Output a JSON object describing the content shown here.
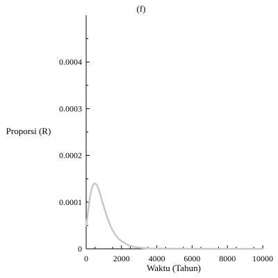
{
  "chart_data": {
    "type": "line",
    "title": "(f)",
    "xlabel": "Waktu (Tahun)",
    "ylabel": "Proporsi (R)",
    "xlim": [
      0,
      10000
    ],
    "ylim": [
      0,
      0.0005
    ],
    "xticks": [
      0,
      2000,
      4000,
      6000,
      8000,
      10000
    ],
    "xtick_labels": [
      "0",
      "2000",
      "4000",
      "6000",
      "8000",
      "10000"
    ],
    "yticks": [
      0,
      0.0001,
      0.0002,
      0.0003,
      0.0004
    ],
    "ytick_labels": [
      "0",
      "0.0001",
      "0.0002",
      "0.0003",
      "0.0004"
    ],
    "grid": false,
    "series": [
      {
        "color": "#c8c8c8",
        "x": [
          0,
          100,
          200,
          300,
          400,
          500,
          600,
          700,
          800,
          1000,
          1200,
          1400,
          1600,
          1800,
          2000,
          2400,
          2800,
          3200,
          3600,
          4000,
          5000,
          6000,
          8000,
          10000
        ],
        "y": [
          4.8e-05,
          7.8e-05,
          0.000108,
          0.000127,
          0.000138,
          0.00014,
          0.000137,
          0.000128,
          0.000116,
          9e-05,
          6.6e-05,
          4.7e-05,
          3.3e-05,
          2.3e-05,
          1.6e-05,
          7.5e-06,
          3.5e-06,
          1.6e-06,
          8e-07,
          4e-07,
          1e-07,
          0,
          0,
          0
        ]
      }
    ]
  }
}
